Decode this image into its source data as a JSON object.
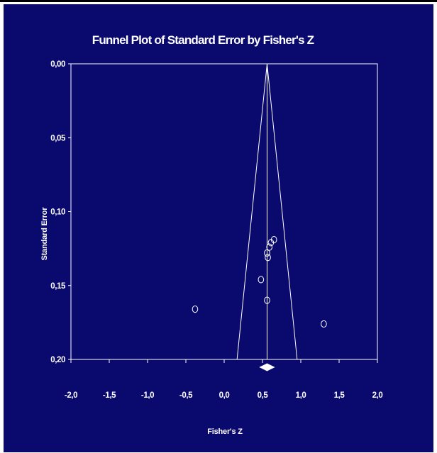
{
  "chart_data": {
    "type": "scatter",
    "title": "Funnel Plot of Standard Error by Fisher's Z",
    "xlabel": "Fisher's Z",
    "ylabel": "Standard Error",
    "xlim": [
      -2.0,
      2.0
    ],
    "ylim": [
      0.0,
      0.2
    ],
    "y_inverted": true,
    "x_ticks": [
      "-2,0",
      "-1,5",
      "-1,0",
      "-0,5",
      "0,0",
      "0,5",
      "1,0",
      "1,5",
      "2,0"
    ],
    "x_tick_values": [
      -2.0,
      -1.5,
      -1.0,
      -0.5,
      0.0,
      0.5,
      1.0,
      1.5,
      2.0
    ],
    "y_ticks": [
      "0,00",
      "0,05",
      "0,10",
      "0,15",
      "0,20"
    ],
    "y_tick_values": [
      0.0,
      0.05,
      0.1,
      0.15,
      0.2
    ],
    "grid": false,
    "pooled_effect": 0.56,
    "funnel_se_max": 0.2,
    "points": [
      {
        "x": 0.65,
        "y": 0.119
      },
      {
        "x": 0.61,
        "y": 0.121
      },
      {
        "x": 0.59,
        "y": 0.124
      },
      {
        "x": 0.56,
        "y": 0.128
      },
      {
        "x": 0.57,
        "y": 0.131
      },
      {
        "x": 0.48,
        "y": 0.146
      },
      {
        "x": 0.56,
        "y": 0.16
      },
      {
        "x": -0.38,
        "y": 0.166
      },
      {
        "x": 1.3,
        "y": 0.176
      }
    ],
    "colors": {
      "background": "#0a0a6e",
      "foreground": "#ffffff"
    }
  }
}
